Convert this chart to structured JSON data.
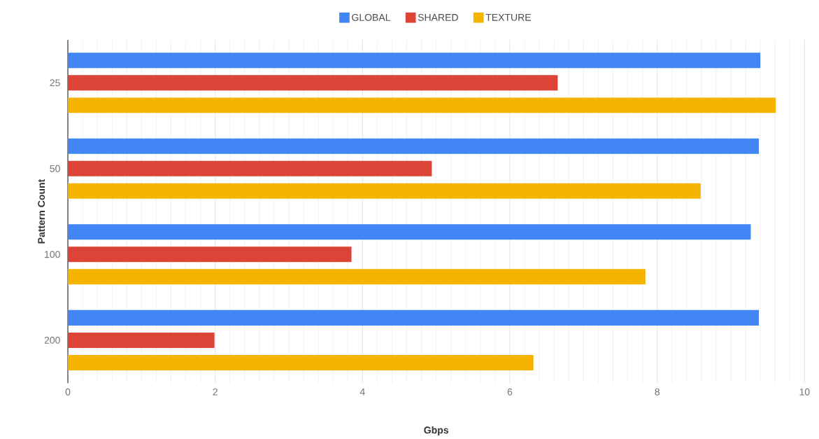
{
  "chart_data": {
    "type": "bar",
    "orientation": "horizontal",
    "xlabel": "Gbps",
    "ylabel": "Pattern Count",
    "categories": [
      "25",
      "50",
      "100",
      "200"
    ],
    "series": [
      {
        "name": "GLOBAL",
        "color": "#4285f4",
        "values": [
          9.4,
          9.38,
          9.27,
          9.38
        ]
      },
      {
        "name": "SHARED",
        "color": "#db4437",
        "values": [
          6.65,
          4.94,
          3.85,
          1.99
        ]
      },
      {
        "name": "TEXTURE",
        "color": "#f4b400",
        "values": [
          9.61,
          8.59,
          7.84,
          6.32
        ]
      }
    ],
    "xlim": [
      0,
      10
    ],
    "xticks": [
      0,
      2,
      4,
      6,
      8,
      10
    ],
    "grid": "x",
    "legend": "top"
  }
}
